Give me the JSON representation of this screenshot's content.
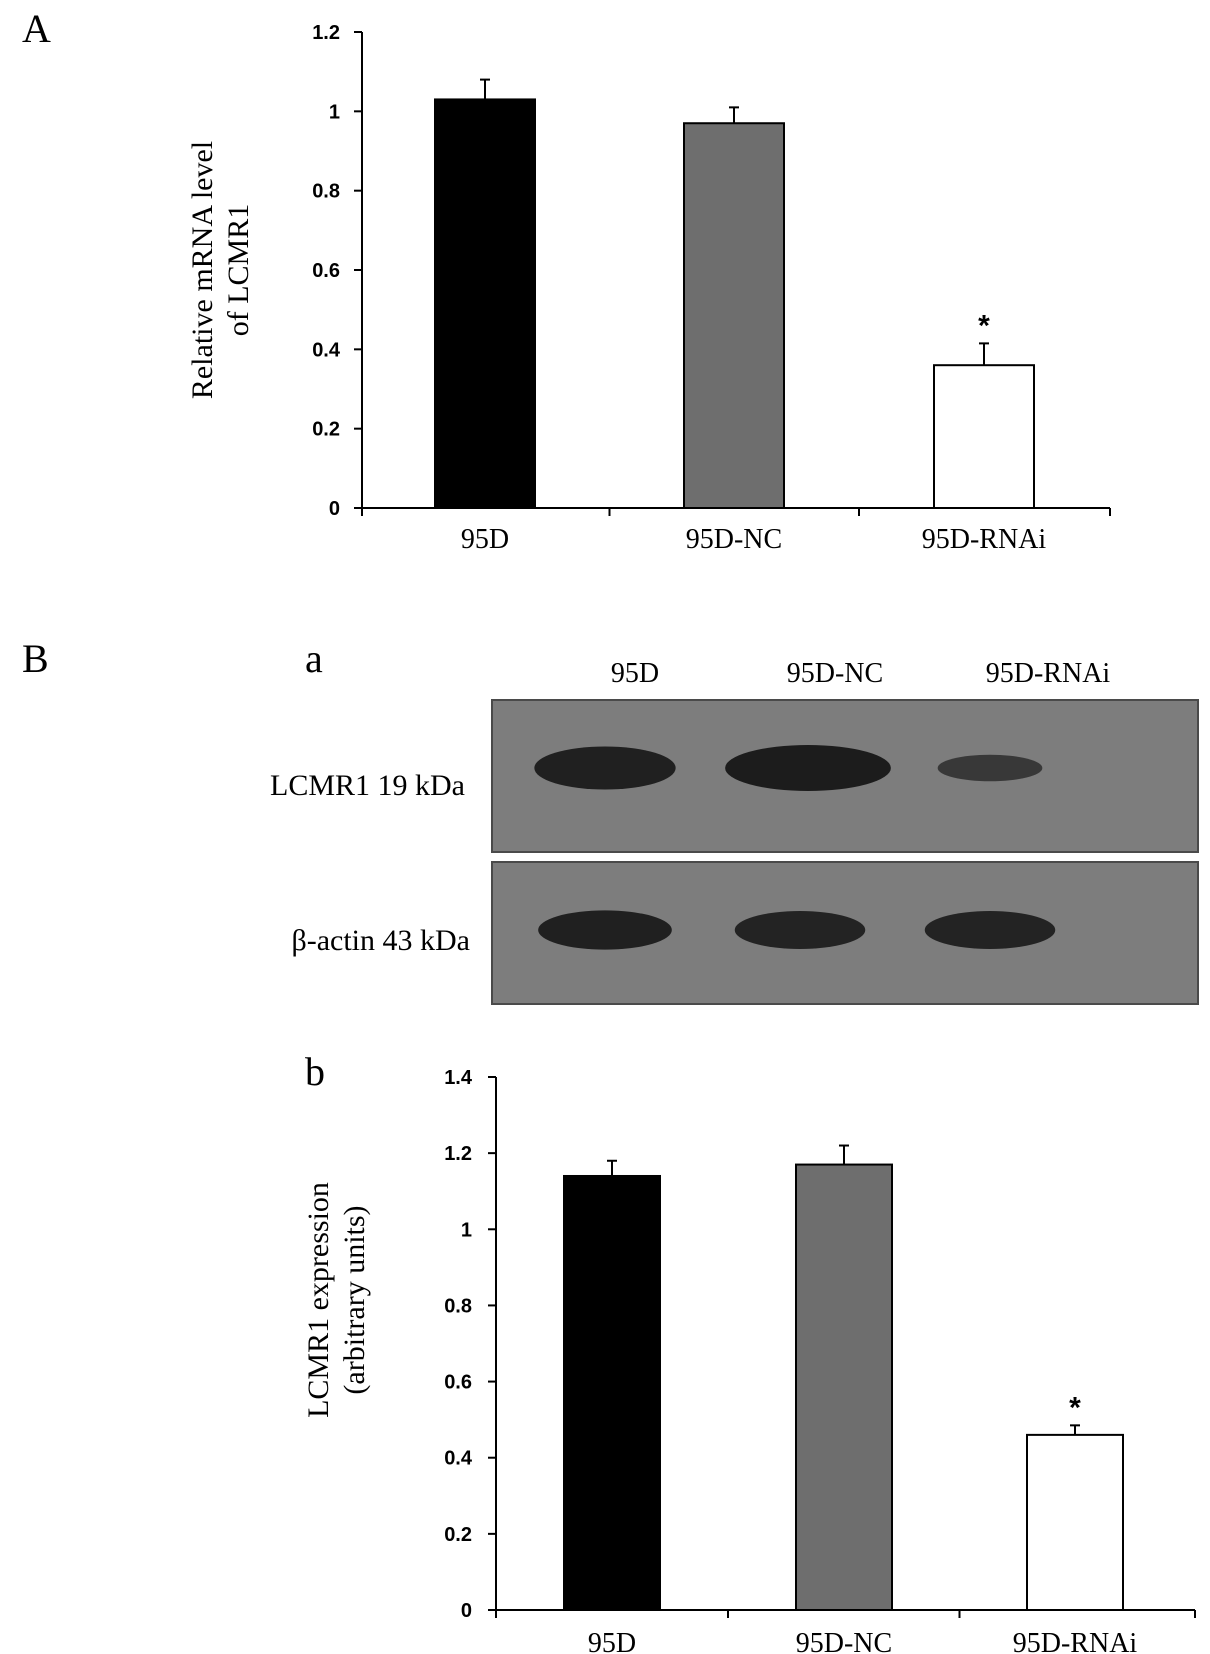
{
  "panels": {
    "A": "A",
    "B": "B",
    "a": "a",
    "b": "b"
  },
  "blot": {
    "lane_labels": [
      "95D",
      "95D-NC",
      "95D-RNAi"
    ],
    "rows": [
      {
        "label": "LCMR1 19 kDa",
        "band_intensity": [
          0.9,
          1.0,
          0.35
        ]
      },
      {
        "label": "β-actin 43 kDa",
        "band_intensity": [
          0.9,
          0.85,
          0.85
        ]
      }
    ]
  },
  "colors": {
    "95D": "#000000",
    "95D-NC": "#6e6e6e",
    "95D-RNAi": "#ffffff",
    "blot_bg": "#7d7d7d",
    "band": "#1c1c1c"
  },
  "chart_data": [
    {
      "type": "bar",
      "panel": "A",
      "categories": [
        "95D",
        "95D-NC",
        "95D-RNAi"
      ],
      "values": [
        1.03,
        0.97,
        0.36
      ],
      "errors": [
        0.05,
        0.04,
        0.055
      ],
      "significance": [
        "",
        "",
        "*"
      ],
      "ylabel_lines": [
        "Relative mRNA level",
        "of LCMR1"
      ],
      "ylim": [
        0,
        1.2
      ],
      "yticks": [
        0,
        0.2,
        0.4,
        0.6,
        0.8,
        1,
        1.2
      ],
      "ytick_labels": [
        "0",
        "0.2",
        "0.4",
        "0.6",
        "0.8",
        "1",
        "1.2"
      ],
      "grid": false
    },
    {
      "type": "bar",
      "panel": "B-b",
      "categories": [
        "95D",
        "95D-NC",
        "95D-RNAi"
      ],
      "values": [
        1.14,
        1.17,
        0.46
      ],
      "errors": [
        0.04,
        0.05,
        0.025
      ],
      "significance": [
        "",
        "",
        "*"
      ],
      "ylabel_lines": [
        "LCMR1 expression",
        "(arbitrary units)"
      ],
      "ylim": [
        0,
        1.4
      ],
      "yticks": [
        0,
        0.2,
        0.4,
        0.6,
        0.8,
        1,
        1.2,
        1.4
      ],
      "ytick_labels": [
        "0",
        "0.2",
        "0.4",
        "0.6",
        "0.8",
        "1",
        "1.2",
        "1.4"
      ],
      "grid": false
    }
  ]
}
